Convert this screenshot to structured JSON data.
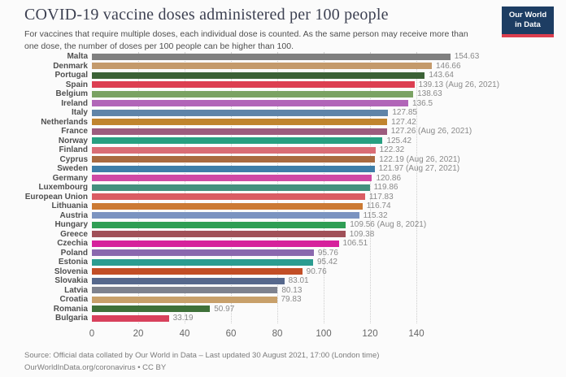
{
  "header": {
    "title": "COVID-19 vaccine doses administered per 100 people",
    "subtitle": "For vaccines that require multiple doses, each individual dose is counted. As the same person may receive more than one dose, the number of doses per 100 people can be higher than 100.",
    "logo": {
      "line1": "Our World",
      "line2": "in Data",
      "bg_color": "#1d3d63",
      "accent_color": "#dc3e4e"
    }
  },
  "chart_data": {
    "type": "bar",
    "orientation": "horizontal",
    "title": "COVID-19 vaccine doses administered per 100 people",
    "xlabel": "",
    "ylabel": "",
    "xlim": [
      0,
      160
    ],
    "x_ticks": [
      0,
      20,
      40,
      60,
      80,
      100,
      120,
      140
    ],
    "grid": "vertical-dotted",
    "legend": "none",
    "categories": [
      "Malta",
      "Denmark",
      "Portugal",
      "Spain",
      "Belgium",
      "Ireland",
      "Italy",
      "Netherlands",
      "France",
      "Norway",
      "Finland",
      "Cyprus",
      "Sweden",
      "Germany",
      "Luxembourg",
      "European Union",
      "Lithuania",
      "Austria",
      "Hungary",
      "Greece",
      "Czechia",
      "Poland",
      "Estonia",
      "Slovenia",
      "Slovakia",
      "Latvia",
      "Croatia",
      "Romania",
      "Bulgaria"
    ],
    "values": [
      154.63,
      146.66,
      143.64,
      139.13,
      138.63,
      136.5,
      127.85,
      127.42,
      127.26,
      125.42,
      122.32,
      122.19,
      121.97,
      120.86,
      119.86,
      117.83,
      116.74,
      115.32,
      109.56,
      109.38,
      106.51,
      95.76,
      95.42,
      90.76,
      83.01,
      80.13,
      79.83,
      50.97,
      33.19
    ],
    "value_labels": [
      "154.63",
      "146.66",
      "143.64",
      "139.13 (Aug 26, 2021)",
      "138.63",
      "136.5",
      "127.85",
      "127.42",
      "127.26 (Aug 26, 2021)",
      "125.42",
      "122.32",
      "122.19 (Aug 26, 2021)",
      "121.97 (Aug 27, 2021)",
      "120.86",
      "119.86",
      "117.83",
      "116.74",
      "115.32",
      "109.56 (Aug 8, 2021)",
      "109.38",
      "106.51",
      "95.76",
      "95.42",
      "90.76",
      "83.01",
      "80.13",
      "79.83",
      "50.97",
      "33.19"
    ],
    "bar_colors": [
      "#7f7f7f",
      "#c49a6b",
      "#3b6236",
      "#dc3e51",
      "#7aa263",
      "#b165b8",
      "#5f84a8",
      "#c0842f",
      "#9c5c7e",
      "#27a081",
      "#d96d75",
      "#a96a40",
      "#3e7ea8",
      "#cf49a4",
      "#43907e",
      "#da5c63",
      "#cc7a33",
      "#7b93c0",
      "#2f9e54",
      "#a05058",
      "#d6219c",
      "#8a68ae",
      "#2b9c90",
      "#c24e26",
      "#56688c",
      "#7e828e",
      "#c8a06a",
      "#3f7139",
      "#d8415c"
    ]
  },
  "footer": {
    "source_line": "Source: Official data collated by Our World in Data – Last updated 30 August 2021, 17:00 (London time)",
    "license_line": "OurWorldInData.org/coronavirus • CC BY"
  }
}
